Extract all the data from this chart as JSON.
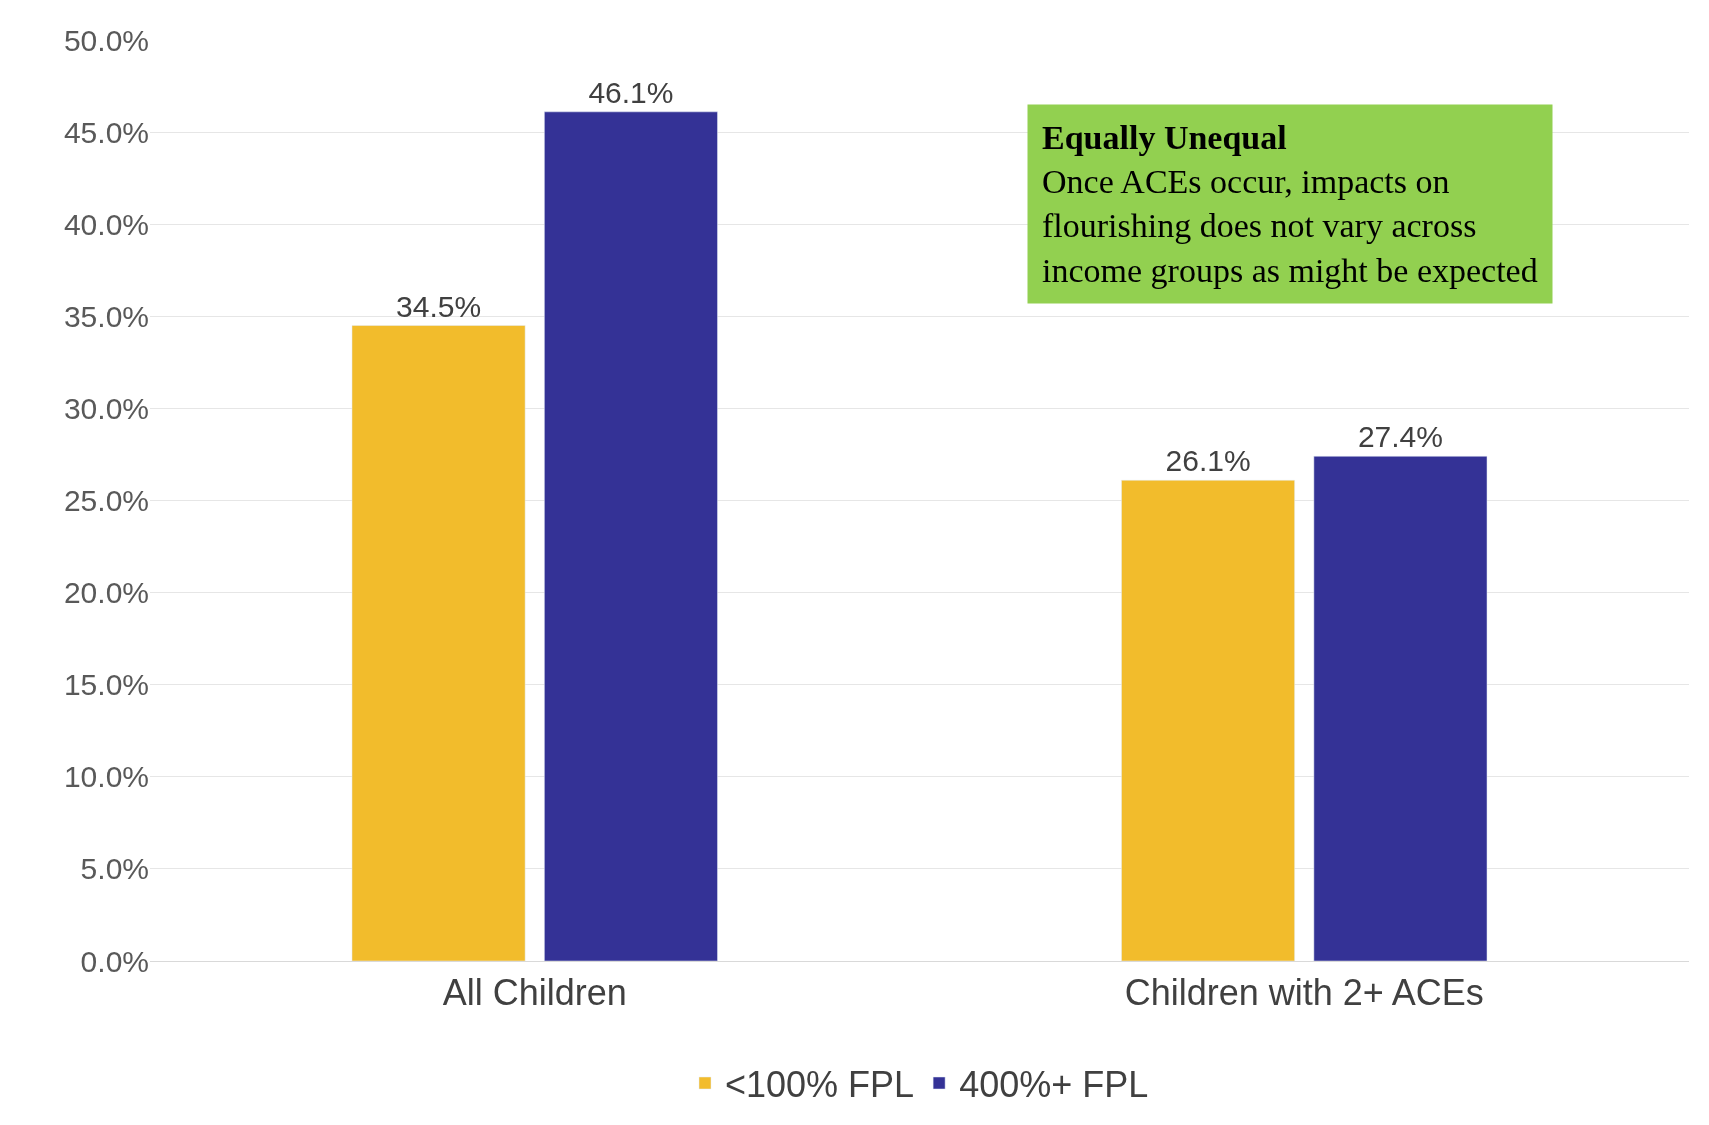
{
  "chart_data": {
    "type": "bar",
    "categories": [
      "All Children",
      "Children with 2+ ACEs"
    ],
    "series": [
      {
        "name": "<100% FPL",
        "color": "#f2bc2c",
        "values": [
          34.5,
          26.1
        ],
        "value_labels": [
          "34.5%",
          "26.1%"
        ]
      },
      {
        "name": "400%+ FPL",
        "color": "#343296",
        "values": [
          46.1,
          27.4
        ],
        "value_labels": [
          "46.1%",
          "27.4%"
        ]
      }
    ],
    "ylim": [
      0,
      50
    ],
    "yticks": [
      {
        "value": 0,
        "label": "0.0%"
      },
      {
        "value": 5,
        "label": "5.0%"
      },
      {
        "value": 10,
        "label": "10.0%"
      },
      {
        "value": 15,
        "label": "15.0%"
      },
      {
        "value": 20,
        "label": "20.0%"
      },
      {
        "value": 25,
        "label": "25.0%"
      },
      {
        "value": 30,
        "label": "30.0%"
      },
      {
        "value": 35,
        "label": "35.0%"
      },
      {
        "value": 40,
        "label": "40.0%"
      },
      {
        "value": 45,
        "label": "45.0%"
      },
      {
        "value": 50,
        "label": "50.0%"
      }
    ],
    "grid": "y",
    "legend": "bottom",
    "annotations": [
      "Equally Unequal",
      "Once ACEs occur, impacts on flourishing does not vary across income groups as might be expected"
    ]
  }
}
